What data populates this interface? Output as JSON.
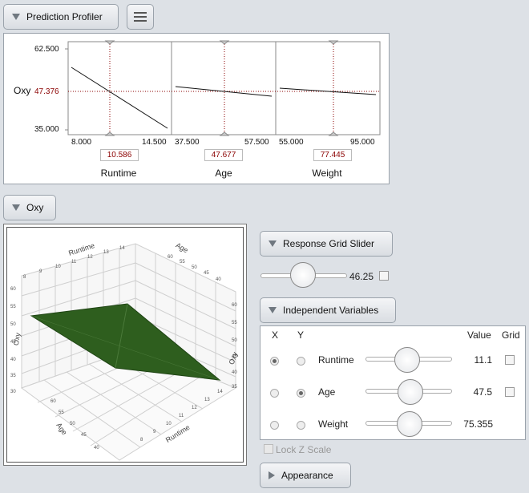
{
  "profiler": {
    "button_label": "Prediction Profiler",
    "response_label": "Oxy",
    "y_max": "62.500",
    "y_current": "47.376",
    "y_min": "35.000",
    "factors": [
      {
        "name": "Runtime",
        "min": "8.000",
        "max": "14.500",
        "current": "10.586"
      },
      {
        "name": "Age",
        "min": "37.500",
        "max": "57.500",
        "current": "47.677"
      },
      {
        "name": "Weight",
        "min": "55.000",
        "max": "95.000",
        "current": "77.445"
      }
    ]
  },
  "oxy_section": {
    "button_label": "Oxy",
    "surface_color": "#2e5e1e",
    "axis_labels": {
      "runtime_top": "Runtime",
      "age_top": "Age",
      "oxy_left": "Oxy",
      "oxy_right": "Oxy",
      "age_bottom": "Age",
      "runtime_bottom": "Runtime"
    },
    "ticks": {
      "runtime_top": [
        "8",
        "9",
        "10",
        "11",
        "12",
        "13",
        "14"
      ],
      "age_top": [
        "60",
        "55",
        "50",
        "45",
        "40"
      ],
      "oxy_left": [
        "60",
        "55",
        "50",
        "45",
        "40",
        "35",
        "30"
      ],
      "oxy_right": [
        "60",
        "55",
        "50",
        "45",
        "40",
        "35"
      ],
      "age_bottom": [
        "60",
        "55",
        "50",
        "45",
        "40"
      ],
      "runtime_bottom": [
        "14",
        "13",
        "12",
        "11",
        "10",
        "9",
        "8"
      ]
    }
  },
  "response_grid": {
    "button_label": "Response Grid Slider",
    "value": "46.25"
  },
  "independent_variables": {
    "button_label": "Independent Variables",
    "headers": {
      "x": "X",
      "y": "Y",
      "value": "Value",
      "grid": "Grid"
    },
    "rows": [
      {
        "name": "Runtime",
        "value": "11.1",
        "x_selected": true,
        "y_selected": false,
        "slider_fraction": 0.48
      },
      {
        "name": "Age",
        "value": "47.5",
        "x_selected": false,
        "y_selected": true,
        "slider_fraction": 0.5
      },
      {
        "name": "Weight",
        "value": "75.355",
        "x_selected": false,
        "y_selected": false,
        "slider_fraction": 0.5
      }
    ]
  },
  "lock_z": {
    "label": "Lock Z Scale"
  },
  "appearance": {
    "button_label": "Appearance"
  }
}
